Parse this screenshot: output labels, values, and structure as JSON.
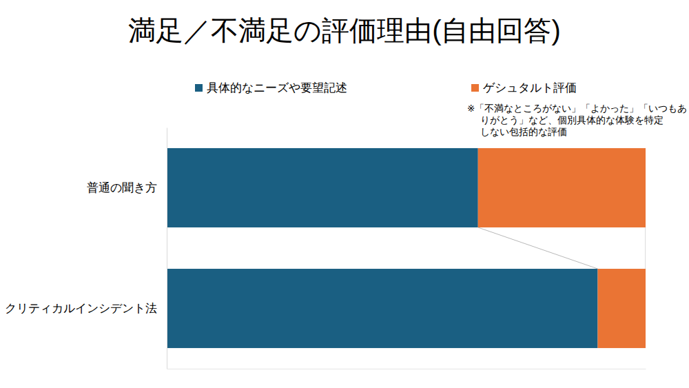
{
  "chart_data": {
    "type": "bar",
    "title": "満足／不満足の評価理由(自由回答)",
    "orientation": "horizontal",
    "stacked": true,
    "tick_labels": "y",
    "categories": [
      "普通の聞き方",
      "クリティカルインシデント法"
    ],
    "series": [
      {
        "name": "具体的なニーズや要望記述",
        "color": "#1a5f82",
        "values": [
          65,
          90
        ]
      },
      {
        "name": "ゲシュタルト評価",
        "color": "#ea7434",
        "values": [
          35,
          10
        ]
      }
    ],
    "xlim": [
      0,
      100
    ],
    "xticks": [],
    "annotation": [
      "※「不満なところがない」「よかった」「いつもあ",
      "りがとう」など、個別具体的な体験を特定",
      "しない包括的な評価"
    ]
  }
}
